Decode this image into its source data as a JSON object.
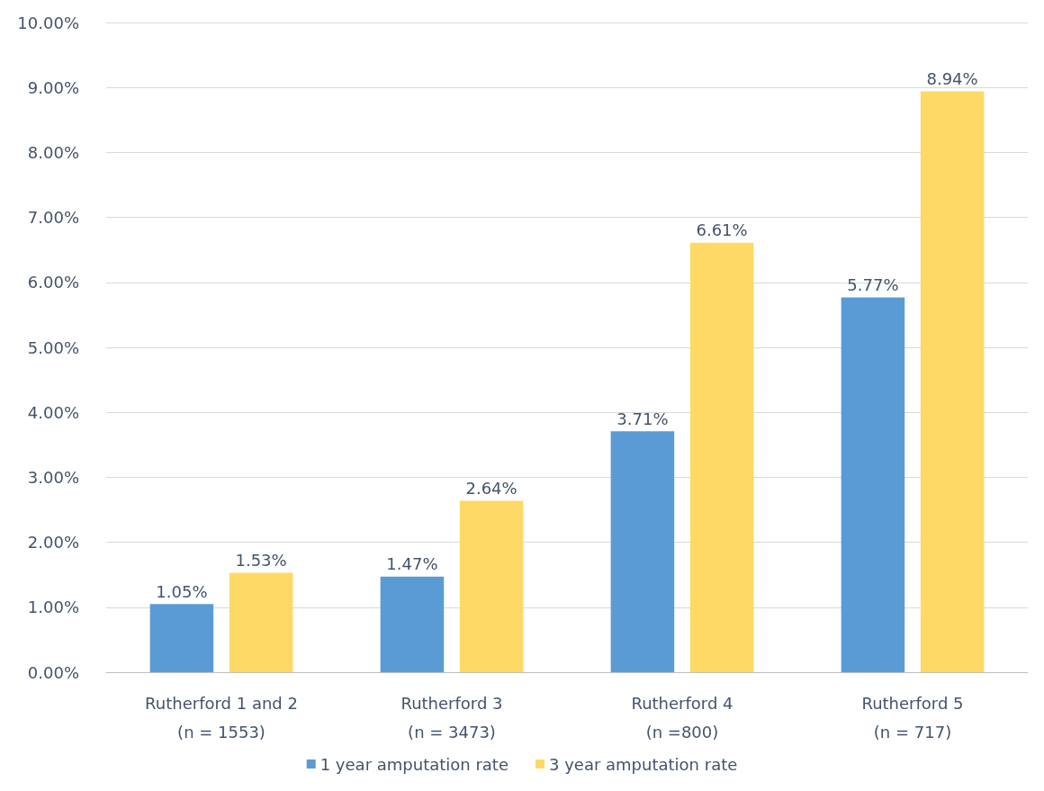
{
  "chart_data": {
    "type": "bar",
    "categories": [
      "Rutherford 1 and 2\n(n = 1553)",
      "Rutherford 3\n(n = 3473)",
      "Rutherford 4\n(n =800)",
      "Rutherford 5\n(n = 717)"
    ],
    "series": [
      {
        "name": "1 year amputation rate",
        "color": "#5b9bd5",
        "values": [
          1.05,
          1.47,
          3.71,
          5.77
        ],
        "value_labels": [
          "1.05%",
          "1.47%",
          "3.71%",
          "5.77%"
        ]
      },
      {
        "name": "3 year amputation rate",
        "color": "#ffd966",
        "values": [
          1.53,
          2.64,
          6.61,
          8.94
        ],
        "value_labels": [
          "1.53%",
          "2.64%",
          "6.61%",
          "8.94%"
        ]
      }
    ],
    "ylim": [
      0,
      10
    ],
    "yticks": [
      {
        "value": 0,
        "label": "0.00%"
      },
      {
        "value": 1,
        "label": "1.00%"
      },
      {
        "value": 2,
        "label": "2.00%"
      },
      {
        "value": 3,
        "label": "3.00%"
      },
      {
        "value": 4,
        "label": "4.00%"
      },
      {
        "value": 5,
        "label": "5.00%"
      },
      {
        "value": 6,
        "label": "6.00%"
      },
      {
        "value": 7,
        "label": "7.00%"
      },
      {
        "value": 8,
        "label": "8.00%"
      },
      {
        "value": 9,
        "label": "9.00%"
      },
      {
        "value": 10,
        "label": "10.00%"
      }
    ],
    "grid": "y",
    "legend": "bottom"
  }
}
